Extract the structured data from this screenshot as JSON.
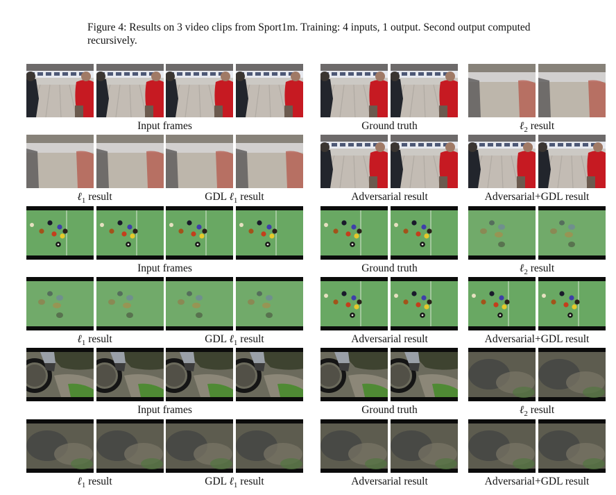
{
  "caption": "Figure 4: Results on 3 video clips from Sport1m. Training: 4 inputs, 1 output. Second output computed recursively.",
  "rows": [
    {
      "scene": "bowling",
      "labels": [
        {
          "text": "Input frames"
        },
        {
          "text": "Ground truth"
        },
        {
          "prefix": "ℓ",
          "sub": "2",
          "text": " result"
        }
      ]
    },
    {
      "scene": "bowling",
      "labels": [
        {
          "prefix": "ℓ",
          "sub": "1",
          "text": " result"
        },
        {
          "text": "GDL ",
          "prefix": "ℓ",
          "sub": "1",
          "suffix": " result"
        },
        {
          "text": "Adversarial result"
        },
        {
          "text": "Adversarial+GDL result"
        }
      ]
    },
    {
      "scene": "billiards",
      "labels": [
        {
          "text": "Input frames"
        },
        {
          "text": "Ground truth"
        },
        {
          "prefix": "ℓ",
          "sub": "2",
          "text": " result"
        }
      ]
    },
    {
      "scene": "billiards",
      "labels": [
        {
          "prefix": "ℓ",
          "sub": "1",
          "text": " result"
        },
        {
          "text": "GDL ",
          "prefix": "ℓ",
          "sub": "1",
          "suffix": " result"
        },
        {
          "text": "Adversarial result"
        },
        {
          "text": "Adversarial+GDL result"
        }
      ]
    },
    {
      "scene": "bike",
      "labels": [
        {
          "text": "Input frames"
        },
        {
          "text": "Ground truth"
        },
        {
          "prefix": "ℓ",
          "sub": "2",
          "text": " result"
        }
      ]
    },
    {
      "scene": "bike",
      "labels": [
        {
          "prefix": "ℓ",
          "sub": "1",
          "text": " result"
        },
        {
          "text": "GDL ",
          "prefix": "ℓ",
          "sub": "1",
          "suffix": " result"
        },
        {
          "text": "Adversarial result"
        },
        {
          "text": "Adversarial+GDL result"
        }
      ]
    }
  ]
}
